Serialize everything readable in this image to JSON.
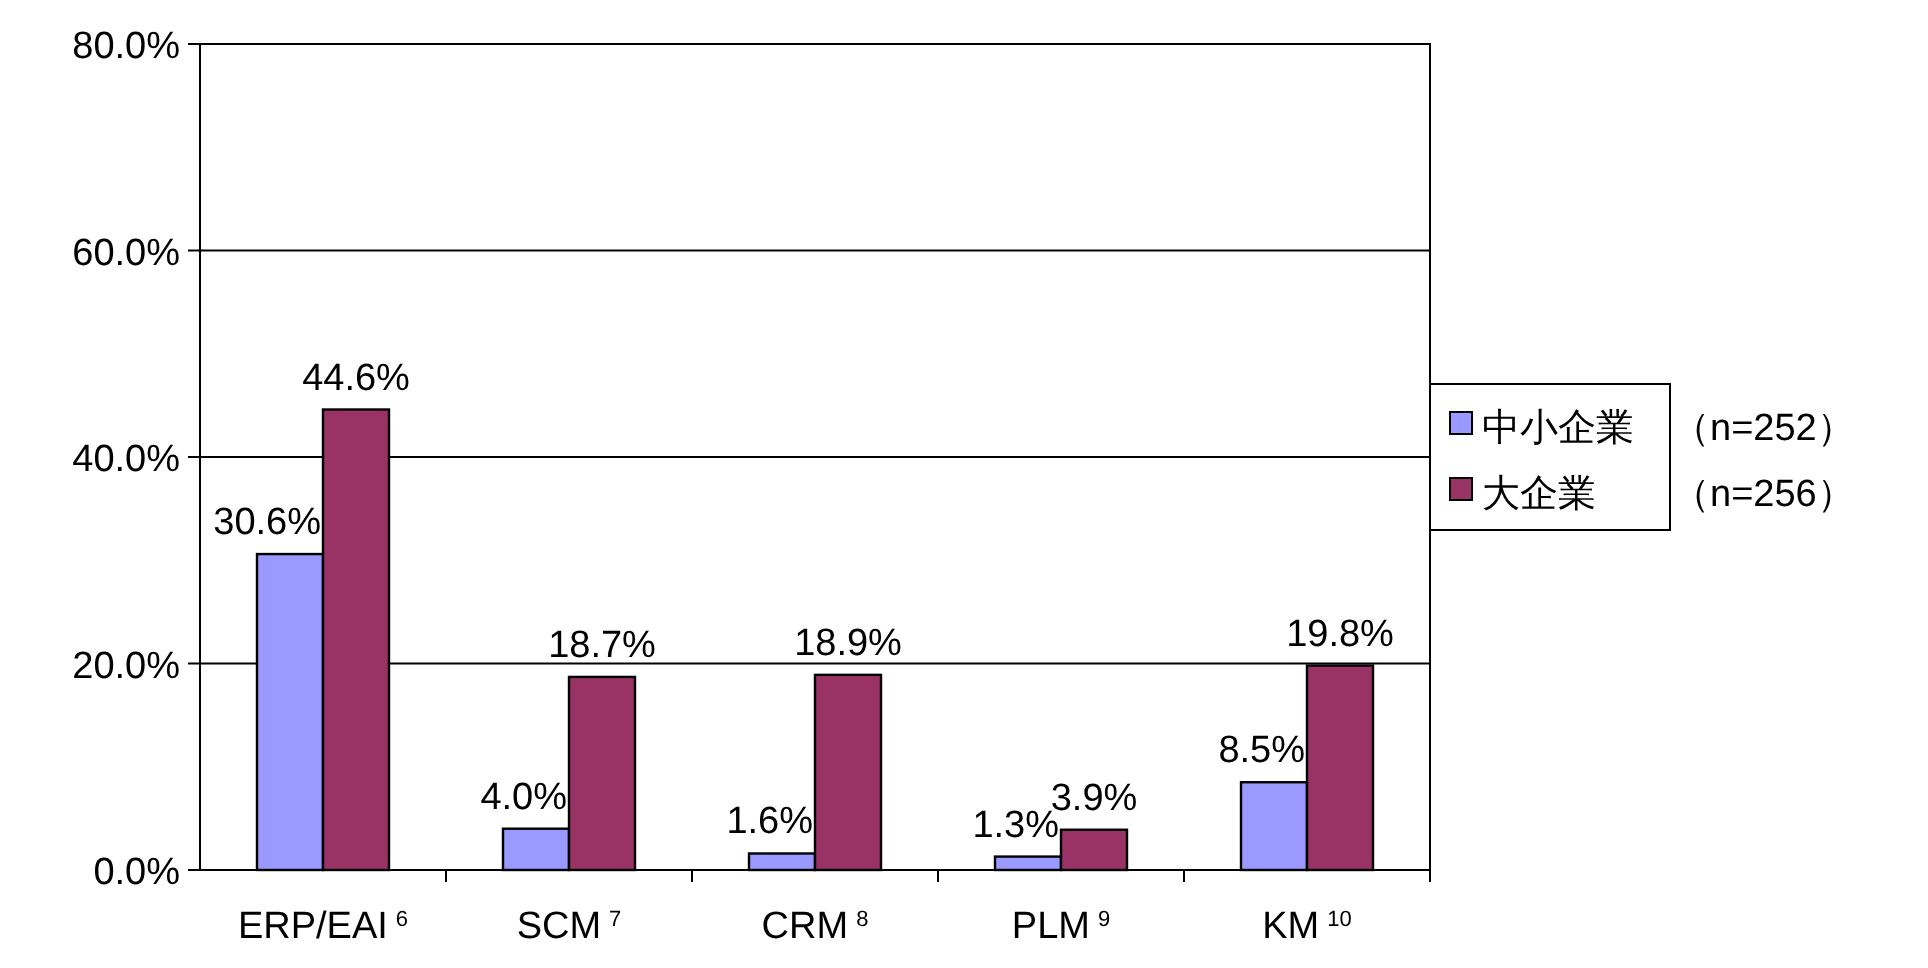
{
  "chart_data": {
    "type": "bar",
    "categories": [
      "ERP/EAI$^{6}$",
      "SCM$^{7}$",
      "CRM$^{8}$",
      "PLM$^{9}$",
      "KM$^{10}$"
    ],
    "series": [
      {
        "name": "中小企業　（n=252）",
        "color": "#9999ff",
        "values": [
          30.6,
          4.0,
          1.6,
          1.3,
          8.5
        ],
        "value_labels": [
          "30.6%",
          "4.0%",
          "1.6%",
          "1.3%",
          "8.5%"
        ]
      },
      {
        "name": "大企業　　（n=256）",
        "color": "#993366",
        "values": [
          44.6,
          18.7,
          18.9,
          3.9,
          19.8
        ],
        "value_labels": [
          "44.6%",
          "18.7%",
          "18.9%",
          "3.9%",
          "19.8%"
        ]
      }
    ],
    "ylim": [
      0,
      80
    ],
    "yticks": [
      {
        "value": 0,
        "label": "0.0%"
      },
      {
        "value": 20,
        "label": "20.0%"
      },
      {
        "value": 40,
        "label": "40.0%"
      },
      {
        "value": 60,
        "label": "60.0%"
      },
      {
        "value": 80,
        "label": "80.0%"
      }
    ],
    "grid": "y",
    "legend": "right"
  }
}
